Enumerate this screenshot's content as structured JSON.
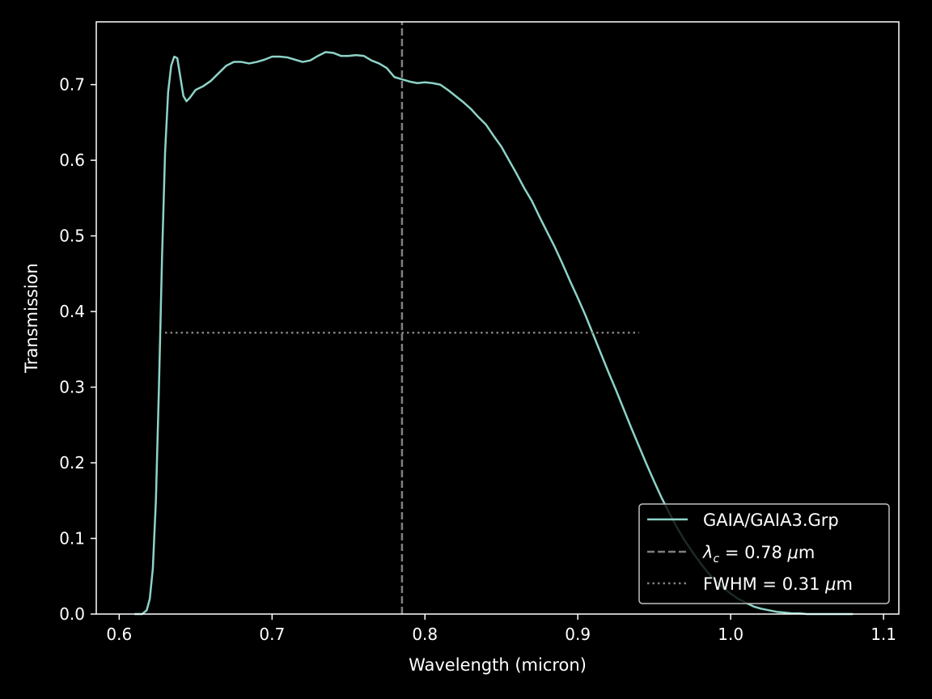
{
  "colors": {
    "background": "#000000",
    "axes": "#ffffff",
    "curve": "#8dd3c7",
    "reference": "#808080",
    "legend_edge": "#bfbfbf"
  },
  "chart_data": {
    "type": "line",
    "xlabel": "Wavelength (micron)",
    "ylabel": "Transmission",
    "xlim": [
      0.585,
      1.11
    ],
    "ylim": [
      0.0,
      0.783
    ],
    "xticks": [
      0.6,
      0.7,
      0.8,
      0.9,
      1.0,
      1.1
    ],
    "xtick_labels": [
      "0.6",
      "0.7",
      "0.8",
      "0.9",
      "1.0",
      "1.1"
    ],
    "yticks": [
      0.0,
      0.1,
      0.2,
      0.3,
      0.4,
      0.5,
      0.6,
      0.7
    ],
    "ytick_labels": [
      "0.0",
      "0.1",
      "0.2",
      "0.3",
      "0.4",
      "0.5",
      "0.6",
      "0.7"
    ],
    "grid": false,
    "legend_position": "lower right",
    "series": [
      {
        "name": "GAIA/GAIA3.Grp",
        "style": "solid",
        "x": [
          0.61,
          0.615,
          0.618,
          0.62,
          0.622,
          0.624,
          0.626,
          0.628,
          0.63,
          0.632,
          0.634,
          0.636,
          0.638,
          0.64,
          0.642,
          0.644,
          0.646,
          0.65,
          0.655,
          0.66,
          0.665,
          0.67,
          0.675,
          0.68,
          0.685,
          0.69,
          0.695,
          0.7,
          0.705,
          0.71,
          0.715,
          0.72,
          0.725,
          0.73,
          0.735,
          0.74,
          0.745,
          0.75,
          0.755,
          0.76,
          0.765,
          0.77,
          0.775,
          0.78,
          0.785,
          0.79,
          0.795,
          0.8,
          0.805,
          0.81,
          0.815,
          0.82,
          0.825,
          0.83,
          0.835,
          0.84,
          0.845,
          0.85,
          0.855,
          0.86,
          0.865,
          0.87,
          0.875,
          0.88,
          0.885,
          0.89,
          0.895,
          0.9,
          0.905,
          0.91,
          0.915,
          0.92,
          0.925,
          0.93,
          0.935,
          0.94,
          0.945,
          0.95,
          0.955,
          0.96,
          0.965,
          0.97,
          0.975,
          0.98,
          0.985,
          0.99,
          0.995,
          1.0,
          1.005,
          1.01,
          1.015,
          1.02,
          1.025,
          1.03,
          1.035,
          1.04,
          1.045,
          1.05,
          1.055,
          1.06,
          1.065,
          1.07,
          1.075,
          1.08
        ],
        "y": [
          0.0,
          0.0,
          0.005,
          0.02,
          0.06,
          0.15,
          0.3,
          0.47,
          0.61,
          0.69,
          0.725,
          0.737,
          0.735,
          0.71,
          0.685,
          0.678,
          0.682,
          0.693,
          0.698,
          0.705,
          0.715,
          0.725,
          0.73,
          0.73,
          0.728,
          0.73,
          0.733,
          0.737,
          0.737,
          0.736,
          0.733,
          0.73,
          0.732,
          0.738,
          0.743,
          0.742,
          0.738,
          0.738,
          0.739,
          0.738,
          0.732,
          0.728,
          0.722,
          0.71,
          0.707,
          0.704,
          0.702,
          0.703,
          0.702,
          0.7,
          0.693,
          0.685,
          0.677,
          0.668,
          0.657,
          0.647,
          0.632,
          0.618,
          0.6,
          0.582,
          0.563,
          0.546,
          0.525,
          0.505,
          0.485,
          0.463,
          0.44,
          0.418,
          0.395,
          0.37,
          0.345,
          0.32,
          0.296,
          0.271,
          0.246,
          0.222,
          0.198,
          0.175,
          0.153,
          0.133,
          0.114,
          0.097,
          0.082,
          0.068,
          0.055,
          0.044,
          0.035,
          0.027,
          0.02,
          0.015,
          0.01,
          0.007,
          0.005,
          0.003,
          0.002,
          0.001,
          0.001,
          0.0,
          0.0,
          0.0,
          0.0,
          0.0,
          0.0,
          0.0
        ]
      },
      {
        "name": "$\\lambda_c$ = 0.78 $\\mu$m",
        "style": "dashed",
        "x": [
          0.785,
          0.785
        ],
        "y": [
          0.0,
          0.783
        ]
      },
      {
        "name": "FWHM = 0.31 $\\mu$m",
        "style": "dotted",
        "x": [
          0.63,
          0.94
        ],
        "y": [
          0.372,
          0.372
        ]
      }
    ]
  },
  "legend": {
    "entries": [
      {
        "text": "GAIA/GAIA3.Grp"
      },
      {
        "symbol": "λ",
        "sub": "c",
        "text": " = 0.78 ",
        "unit_symbol": "μ",
        "unit": "m"
      },
      {
        "prefix": "FWHM = 0.31 ",
        "unit_symbol": "μ",
        "unit": "m"
      }
    ]
  }
}
